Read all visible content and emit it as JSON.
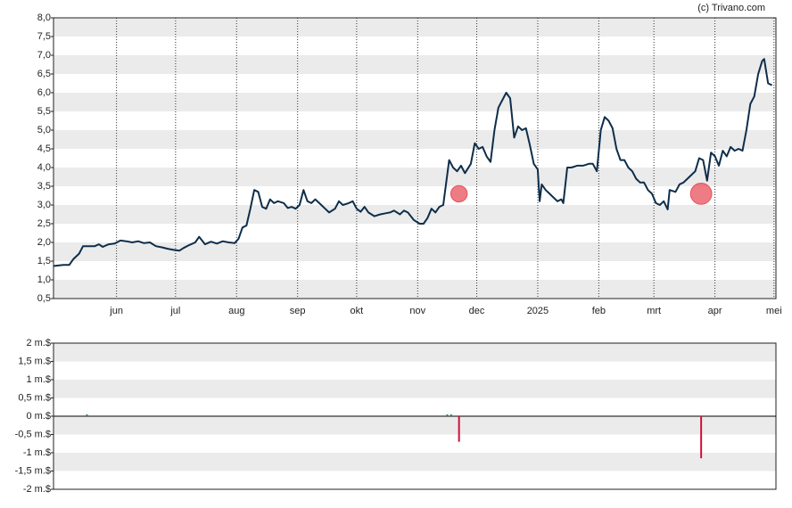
{
  "chart_data": [
    {
      "type": "line",
      "credit": "(c) Trivano.com",
      "color": "#0e2e4a",
      "marker_color": "#e8505b",
      "xlim": [
        0,
        367
      ],
      "ylim": [
        0.5,
        8.0
      ],
      "grid": true,
      "xticks": [
        {
          "value": 32,
          "label": "jun"
        },
        {
          "value": 62,
          "label": "jul"
        },
        {
          "value": 93,
          "label": "aug"
        },
        {
          "value": 124,
          "label": "sep"
        },
        {
          "value": 154,
          "label": "okt"
        },
        {
          "value": 185,
          "label": "nov"
        },
        {
          "value": 215,
          "label": "dec"
        },
        {
          "value": 246,
          "label": "2025"
        },
        {
          "value": 277,
          "label": "feb"
        },
        {
          "value": 305,
          "label": "mrt"
        },
        {
          "value": 336,
          "label": "apr"
        },
        {
          "value": 366,
          "label": "mei"
        }
      ],
      "yticks": [
        {
          "value": 8.0,
          "label": "8,0"
        },
        {
          "value": 7.5,
          "label": "7,5"
        },
        {
          "value": 7.0,
          "label": "7,0"
        },
        {
          "value": 6.5,
          "label": "6,5"
        },
        {
          "value": 6.0,
          "label": "6,0"
        },
        {
          "value": 5.5,
          "label": "5,5"
        },
        {
          "value": 5.0,
          "label": "5,0"
        },
        {
          "value": 4.5,
          "label": "4,5"
        },
        {
          "value": 4.0,
          "label": "4,0"
        },
        {
          "value": 3.5,
          "label": "3,5"
        },
        {
          "value": 3.0,
          "label": "3,0"
        },
        {
          "value": 2.5,
          "label": "2,5"
        },
        {
          "value": 2.0,
          "label": "2,0"
        },
        {
          "value": 1.5,
          "label": "1,5"
        },
        {
          "value": 1.0,
          "label": "1,0"
        },
        {
          "value": 0.5,
          "label": "0,5"
        }
      ],
      "x": [
        0,
        5,
        8,
        10,
        13,
        15,
        18,
        21,
        23,
        25,
        28,
        31,
        34,
        37,
        40,
        43,
        46,
        49,
        52,
        55,
        58,
        61,
        64,
        66,
        69,
        72,
        74,
        77,
        80,
        83,
        86,
        89,
        92,
        94,
        96,
        98,
        100,
        102,
        104,
        106,
        108,
        110,
        112,
        114,
        117,
        119,
        121,
        123,
        125,
        127,
        129,
        131,
        133,
        135,
        138,
        140,
        143,
        145,
        147,
        150,
        152,
        154,
        156,
        158,
        160,
        163,
        166,
        169,
        171,
        173,
        176,
        178,
        180,
        183,
        186,
        188,
        190,
        192,
        194,
        196,
        198,
        200,
        201,
        203,
        205,
        207,
        209,
        212,
        214,
        216,
        218,
        220,
        222,
        224,
        226,
        228,
        230,
        232,
        234,
        236,
        238,
        240,
        242,
        244,
        246,
        247,
        248,
        250,
        252,
        254,
        256,
        258,
        259,
        261,
        263,
        266,
        269,
        272,
        274,
        276,
        278,
        280,
        282,
        284,
        286,
        288,
        290,
        292,
        294,
        296,
        298,
        300,
        302,
        304,
        306,
        308,
        310,
        312,
        313,
        316,
        318,
        320,
        322,
        324,
        326,
        328,
        330,
        332,
        334,
        336,
        338,
        340,
        342,
        344,
        346,
        348,
        350,
        352,
        354,
        356,
        358,
        360,
        361,
        363,
        365
      ],
      "values": [
        1.37,
        1.4,
        1.4,
        1.55,
        1.7,
        1.9,
        1.9,
        1.9,
        1.95,
        1.88,
        1.95,
        1.97,
        2.05,
        2.03,
        2.0,
        2.03,
        1.98,
        2.0,
        1.9,
        1.87,
        1.83,
        1.8,
        1.78,
        1.85,
        1.93,
        2.0,
        2.15,
        1.95,
        2.02,
        1.97,
        2.03,
        2.0,
        1.98,
        2.1,
        2.4,
        2.45,
        2.9,
        3.4,
        3.35,
        2.95,
        2.9,
        3.15,
        3.05,
        3.1,
        3.05,
        2.92,
        2.95,
        2.9,
        3.0,
        3.4,
        3.1,
        3.05,
        3.15,
        3.05,
        2.9,
        2.8,
        2.9,
        3.1,
        3.0,
        3.05,
        3.1,
        2.9,
        2.82,
        2.95,
        2.8,
        2.7,
        2.75,
        2.78,
        2.8,
        2.85,
        2.75,
        2.85,
        2.8,
        2.6,
        2.5,
        2.5,
        2.65,
        2.9,
        2.8,
        2.95,
        3.0,
        3.8,
        4.2,
        4.0,
        3.9,
        4.05,
        3.85,
        4.1,
        4.65,
        4.5,
        4.55,
        4.3,
        4.15,
        5.0,
        5.6,
        5.8,
        6.0,
        5.85,
        4.8,
        5.1,
        5.0,
        5.05,
        4.6,
        4.1,
        3.95,
        3.1,
        3.55,
        3.4,
        3.3,
        3.2,
        3.1,
        3.15,
        3.05,
        4.0,
        4.0,
        4.05,
        4.05,
        4.1,
        4.1,
        3.9,
        5.0,
        5.35,
        5.25,
        5.05,
        4.5,
        4.2,
        4.2,
        4.0,
        3.9,
        3.7,
        3.6,
        3.6,
        3.4,
        3.3,
        3.05,
        3.0,
        3.1,
        2.88,
        3.4,
        3.35,
        3.55,
        3.6,
        3.7,
        3.8,
        3.9,
        4.25,
        4.2,
        3.65,
        4.4,
        4.3,
        4.05,
        4.45,
        4.3,
        4.55,
        4.45,
        4.5,
        4.45,
        5.0,
        5.7,
        5.9,
        6.5,
        6.85,
        6.9,
        6.25,
        6.2
      ],
      "markers": {
        "x": [
          206,
          329
        ],
        "values": [
          3.3,
          3.3
        ]
      }
    },
    {
      "type": "bar",
      "xlim": [
        0,
        367
      ],
      "ylim": [
        -2,
        2
      ],
      "grid": true,
      "yticks": [
        {
          "value": 2,
          "label": "2 m.$"
        },
        {
          "value": 1.5,
          "label": "1,5 m.$"
        },
        {
          "value": 1,
          "label": "1 m.$"
        },
        {
          "value": 0.5,
          "label": "0,5 m.$"
        },
        {
          "value": 0,
          "label": "0 m.$"
        },
        {
          "value": -0.5,
          "label": "-0,5 m.$"
        },
        {
          "value": -1,
          "label": "-1 m.$"
        },
        {
          "value": -1.5,
          "label": "-1,5 m.$"
        },
        {
          "value": -2,
          "label": "-2 m.$"
        }
      ],
      "x": [
        17,
        200,
        202,
        206,
        329
      ],
      "values": [
        0.05,
        0.05,
        0.05,
        -0.7,
        -1.15
      ],
      "pos_color": "#2e8b3a",
      "neg_color": "#d0103a"
    }
  ]
}
